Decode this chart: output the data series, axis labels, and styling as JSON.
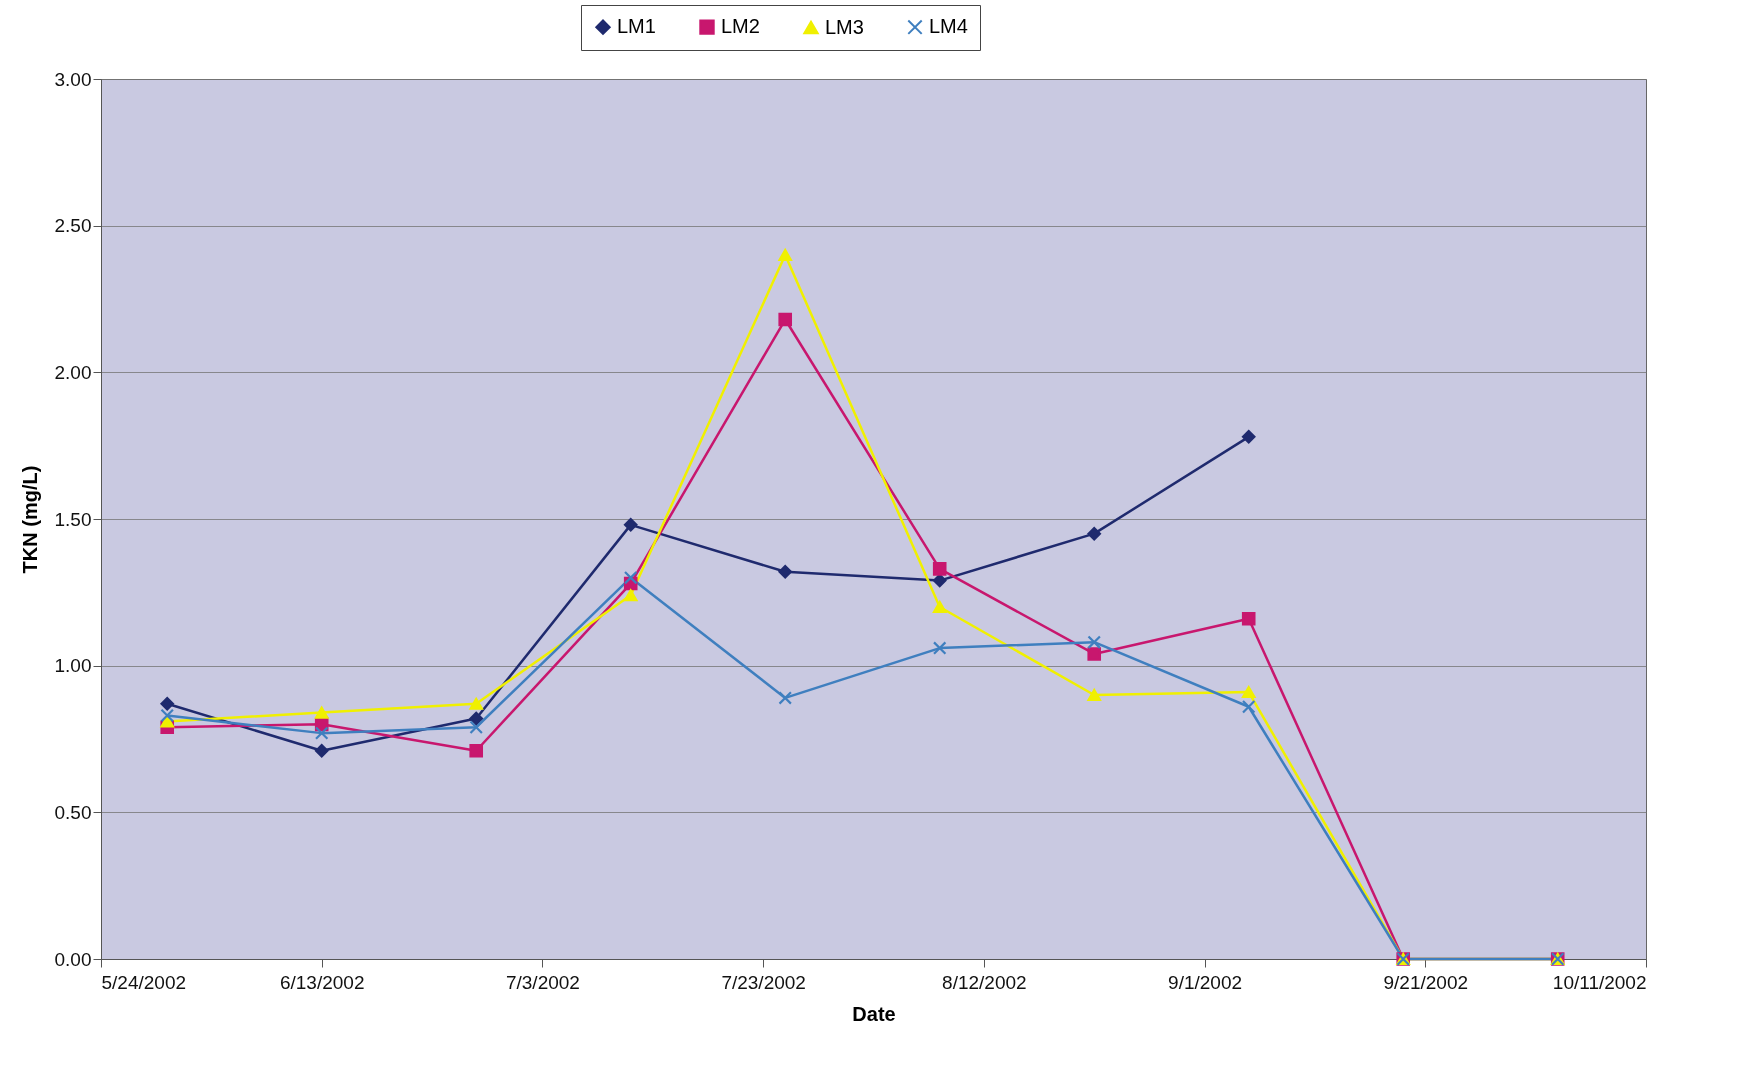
{
  "chart_data": {
    "type": "line",
    "xlabel": "Date",
    "ylabel": "TKN (mg/L)",
    "x": [
      "2002-05-30",
      "2002-06-13",
      "2002-06-27",
      "2002-07-11",
      "2002-07-25",
      "2002-08-08",
      "2002-08-22",
      "2002-09-05",
      "2002-09-19",
      "2002-10-03"
    ],
    "series": [
      {
        "name": "LM1",
        "color": "#1f2a6e",
        "marker": "diamond",
        "values": [
          0.87,
          0.71,
          0.82,
          1.48,
          1.32,
          1.29,
          1.45,
          1.78,
          null,
          null
        ]
      },
      {
        "name": "LM2",
        "color": "#c8176e",
        "marker": "square",
        "values": [
          0.79,
          0.8,
          0.71,
          1.28,
          2.18,
          1.33,
          1.04,
          1.16,
          0,
          0
        ]
      },
      {
        "name": "LM3",
        "color": "#f0f000",
        "marker": "triangle",
        "values": [
          0.81,
          0.84,
          0.87,
          1.24,
          2.4,
          1.2,
          0.9,
          0.91,
          0,
          0
        ]
      },
      {
        "name": "LM4",
        "color": "#3f7fbf",
        "marker": "cross",
        "values": [
          0.83,
          0.77,
          0.79,
          1.3,
          0.89,
          1.06,
          1.08,
          0.86,
          0,
          0
        ]
      }
    ],
    "xlim": [
      "2002-05-24",
      "2002-10-11"
    ],
    "xticks": [
      {
        "value": "2002-05-24",
        "label": "5/24/2002"
      },
      {
        "value": "2002-06-13",
        "label": "6/13/2002"
      },
      {
        "value": "2002-07-03",
        "label": "7/3/2002"
      },
      {
        "value": "2002-07-23",
        "label": "7/23/2002"
      },
      {
        "value": "2002-08-12",
        "label": "8/12/2002"
      },
      {
        "value": "2002-09-01",
        "label": "9/1/2002"
      },
      {
        "value": "2002-09-21",
        "label": "9/21/2002"
      },
      {
        "value": "2002-10-11",
        "label": "10/11/2002"
      }
    ],
    "ylim": [
      0,
      3
    ],
    "yticks": [
      {
        "value": 0,
        "label": "0.00"
      },
      {
        "value": 0.5,
        "label": "0.50"
      },
      {
        "value": 1,
        "label": "1.00"
      },
      {
        "value": 1.5,
        "label": "1.50"
      },
      {
        "value": 2,
        "label": "2.00"
      },
      {
        "value": 2.5,
        "label": "2.50"
      },
      {
        "value": 3,
        "label": "3.00"
      }
    ],
    "grid": "y",
    "legend": "top"
  }
}
